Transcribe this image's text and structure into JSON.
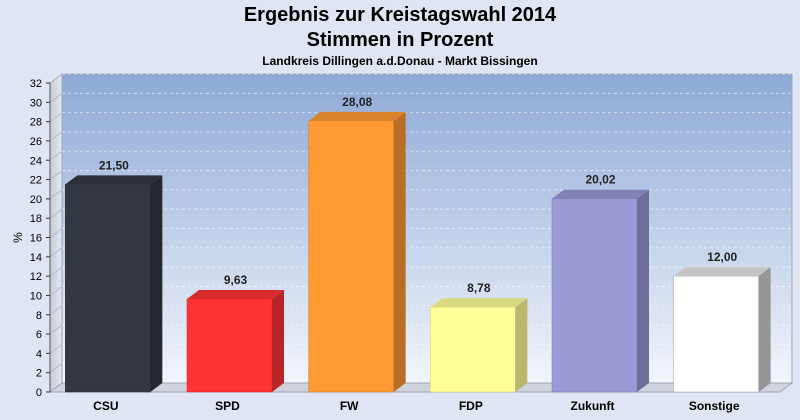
{
  "chart_data": {
    "type": "bar",
    "title": "Ergebnis zur Kreistagswahl 2014",
    "subtitle": "Stimmen in Prozent",
    "caption": "Landkreis Dillingen a.d.Donau - Markt Bissingen",
    "ylabel": "%",
    "xlabel": "",
    "ylim": [
      0,
      32
    ],
    "yticks": [
      "0",
      "2",
      "4",
      "6",
      "8",
      "10",
      "12",
      "14",
      "16",
      "18",
      "20",
      "22",
      "24",
      "26",
      "28",
      "30",
      "32"
    ],
    "grid": true,
    "categories": [
      "CSU",
      "SPD",
      "FW",
      "FDP",
      "Zukunft",
      "Sonstige"
    ],
    "values": [
      21.5,
      9.63,
      28.08,
      8.78,
      20.02,
      12.0
    ],
    "value_labels": [
      "21,50",
      "9,63",
      "28,08",
      "8,78",
      "20,02",
      "12,00"
    ],
    "colors": [
      "#33373f",
      "#ff3336",
      "#ff9a33",
      "#ffff99",
      "#9999d6",
      "#ffffff"
    ]
  }
}
